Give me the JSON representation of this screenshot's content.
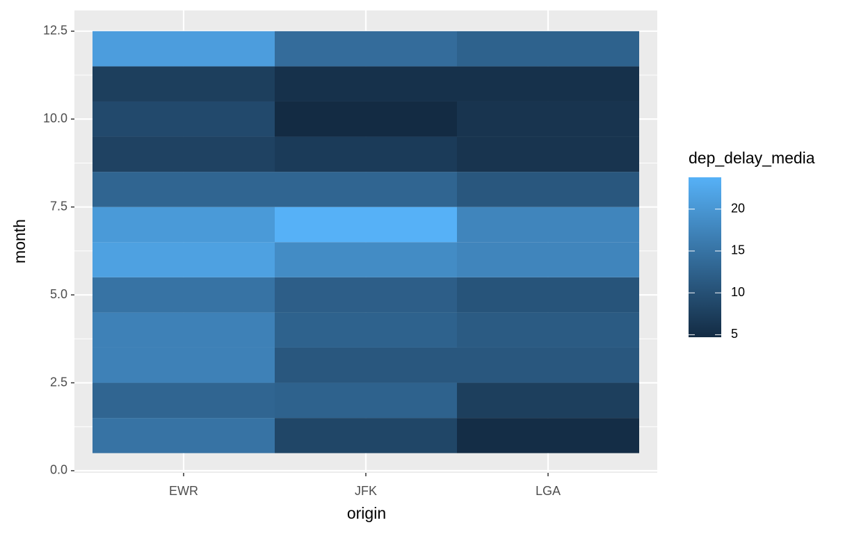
{
  "chart_data": {
    "type": "heatmap",
    "x_label": "origin",
    "y_label": "month",
    "categories": [
      "EWR",
      "JFK",
      "LGA"
    ],
    "y": [
      1,
      2,
      3,
      4,
      5,
      6,
      7,
      8,
      9,
      10,
      11,
      12
    ],
    "values": [
      [
        15,
        13,
        17,
        17,
        15,
        21.5,
        20.5,
        13,
        8,
        9,
        7.5,
        21
      ],
      [
        8.5,
        12.5,
        11,
        12.5,
        12,
        18.5,
        23.8,
        13,
        7,
        4.7,
        5.5,
        14
      ],
      [
        5,
        7.5,
        11,
        11.5,
        10.5,
        17.5,
        17.5,
        11,
        6,
        6,
        5.5,
        12.5
      ]
    ],
    "ylim": [
      -0.06,
      13.09
    ],
    "yticks": [
      {
        "value": 0,
        "label": "0.0"
      },
      2.5,
      {
        "value": 5,
        "label": "5.0"
      },
      7.5,
      {
        "value": 10,
        "label": "10.0"
      },
      12.5
    ],
    "grid": true,
    "legend_title": "dep_delay_media",
    "color_low": "#132B43",
    "color_high": "#56B1F7",
    "color_limits": [
      4.7,
      23.8
    ],
    "legend_ticks": [
      5,
      10,
      15,
      20
    ]
  }
}
